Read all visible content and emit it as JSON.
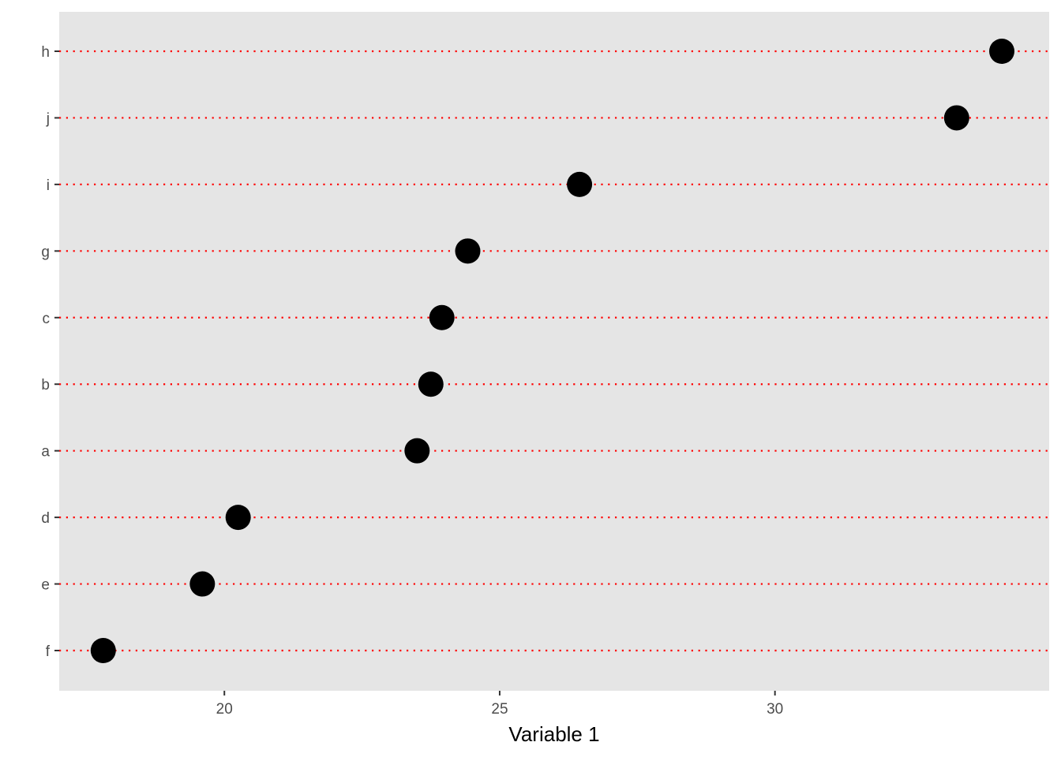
{
  "chart_data": {
    "type": "scatter",
    "subtype": "dot-plot",
    "title": "",
    "xlabel": "Variable 1",
    "ylabel": "",
    "xlim": [
      17.0,
      34.98
    ],
    "x_ticks": [
      20,
      25,
      30
    ],
    "categories": [
      "f",
      "e",
      "d",
      "a",
      "b",
      "c",
      "g",
      "i",
      "j",
      "h"
    ],
    "series": [
      {
        "values": [
          17.8,
          19.6,
          20.25,
          23.5,
          23.75,
          23.95,
          24.42,
          26.45,
          33.3,
          34.12
        ]
      }
    ],
    "grid": false,
    "legend": "none",
    "colors": {
      "panel_background": "#e5e5e5",
      "guide_lines": "#ff0000",
      "points": "#000000",
      "tick_text": "#4d4d4d",
      "axis_ticks": "#333333"
    }
  }
}
